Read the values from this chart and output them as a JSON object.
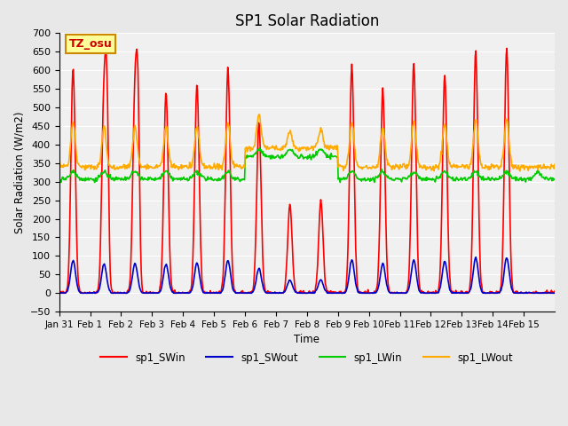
{
  "title": "SP1 Solar Radiation",
  "ylabel": "Solar Radiation (W/m2)",
  "xlabel": "Time",
  "ylim": [
    -50,
    700
  ],
  "yticks": [
    -50,
    0,
    50,
    100,
    150,
    200,
    250,
    300,
    350,
    400,
    450,
    500,
    550,
    600,
    650,
    700
  ],
  "colors": {
    "sp1_SWin": "#ff0000",
    "sp1_SWout": "#0000cc",
    "sp1_LWin": "#00cc00",
    "sp1_LWout": "#ffaa00"
  },
  "annotation_text": "TZ_osu",
  "annotation_bg": "#ffff99",
  "annotation_border": "#cc8800",
  "bg_color": "#e8e8e8",
  "plot_bg": "#f0f0f0",
  "grid_color": "#ffffff",
  "n_days": 15,
  "start_day": 30,
  "lw": 1.2
}
